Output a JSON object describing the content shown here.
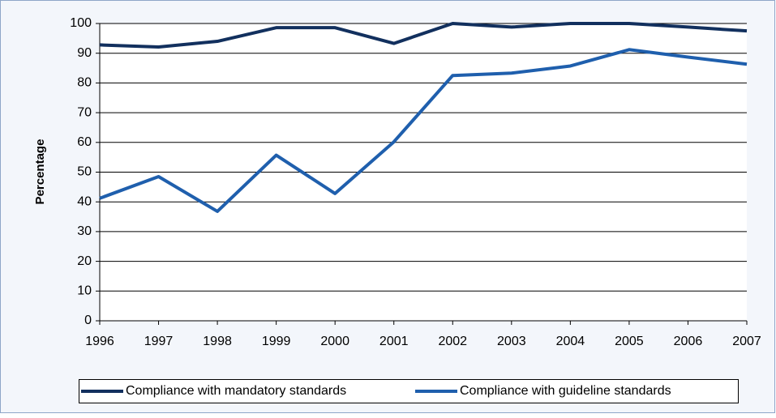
{
  "chart_data": {
    "type": "line",
    "y_label": "Percentage",
    "categories": [
      "1996",
      "1997",
      "1998",
      "1999",
      "2000",
      "2001",
      "2002",
      "2003",
      "2004",
      "2005",
      "2006",
      "2007"
    ],
    "series": [
      {
        "name": "Compliance with mandatory standards",
        "color": "#12305e",
        "values": [
          92.8,
          92.1,
          94,
          98.6,
          98.6,
          93.3,
          100,
          98.8,
          100,
          100,
          98.8,
          97.5
        ]
      },
      {
        "name": "Compliance with guideline standards",
        "color": "#1f5fad",
        "values": [
          41.2,
          48.5,
          36.8,
          55.7,
          42.8,
          60.2,
          82.5,
          83.3,
          85.7,
          91.2,
          88.7,
          86.3
        ]
      }
    ],
    "ylim": [
      0,
      100
    ],
    "yticks": [
      0,
      10,
      20,
      30,
      40,
      50,
      60,
      70,
      80,
      90,
      100
    ],
    "grid": true,
    "legend": "bottom"
  }
}
